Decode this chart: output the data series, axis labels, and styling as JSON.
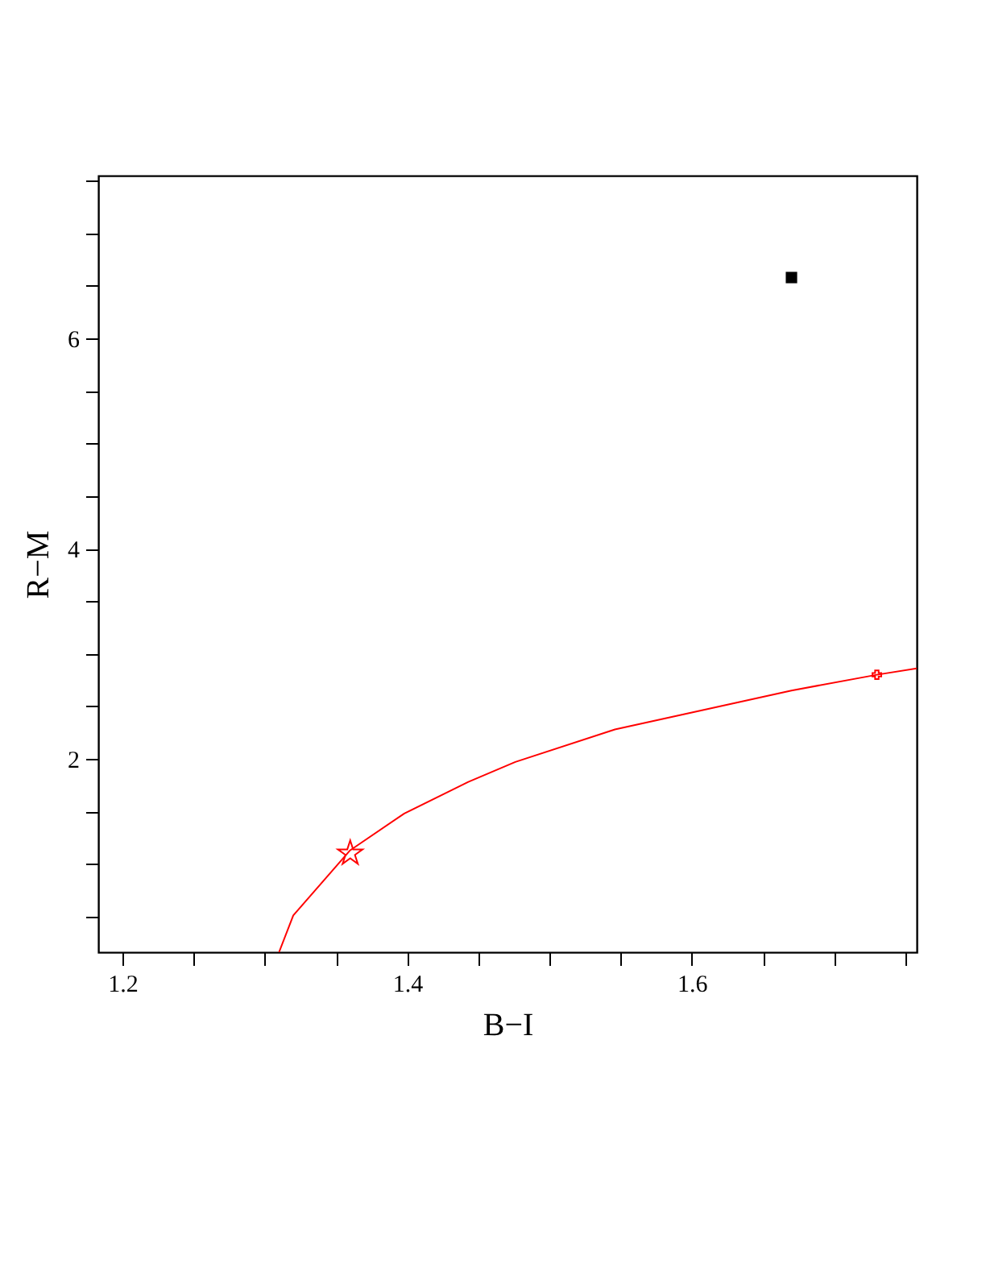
{
  "chart_data": {
    "type": "line",
    "xlabel": "B−I",
    "ylabel": "R−M",
    "xlim": [
      1.183,
      1.758
    ],
    "ylim": [
      0.16,
      7.55
    ],
    "xticks": [
      1.2,
      {
        "value": 1.25,
        "label": null
      },
      {
        "value": 1.3,
        "label": null
      },
      {
        "value": 1.35,
        "label": null
      },
      1.4,
      {
        "value": 1.45,
        "label": null
      },
      {
        "value": 1.5,
        "label": null
      },
      {
        "value": 1.55,
        "label": null
      },
      1.6,
      {
        "value": 1.65,
        "label": null
      },
      {
        "value": 1.7,
        "label": null
      },
      {
        "value": 1.75,
        "label": null
      }
    ],
    "yticks": [
      {
        "value": 0.5,
        "label": null
      },
      {
        "value": 1,
        "label": null
      },
      {
        "value": 1.5,
        "label": null
      },
      2,
      {
        "value": 2.5,
        "label": null
      },
      {
        "value": 3,
        "label": null
      },
      {
        "value": 3.5,
        "label": null
      },
      4,
      {
        "value": 4.5,
        "label": null
      },
      {
        "value": 5,
        "label": null
      },
      {
        "value": 5.5,
        "label": null
      },
      6,
      {
        "value": 6.5,
        "label": null
      },
      {
        "value": 7,
        "label": null
      },
      {
        "value": 7.5,
        "label": null
      }
    ],
    "grid": false,
    "series": [
      {
        "color": "#ff0000",
        "marker": "none",
        "x": [
          1.31,
          1.32,
          1.36,
          1.398,
          1.443,
          1.476,
          1.546,
          1.6,
          1.67,
          1.73,
          1.758
        ],
        "values": [
          0.16,
          0.51,
          1.13,
          1.48,
          1.78,
          1.97,
          2.28,
          2.44,
          2.65,
          2.8,
          2.86
        ]
      },
      {
        "type": "scatter",
        "color": "#ff0000",
        "marker": "star",
        "x": [
          1.36
        ],
        "values": [
          1.1
        ]
      },
      {
        "type": "scatter",
        "color": "#ff0000",
        "marker": "cross",
        "x": [
          1.73
        ],
        "values": [
          2.8
        ]
      },
      {
        "type": "scatter",
        "color": "#000000",
        "marker": "square",
        "x": [
          1.67
        ],
        "values": [
          6.58
        ]
      }
    ]
  }
}
